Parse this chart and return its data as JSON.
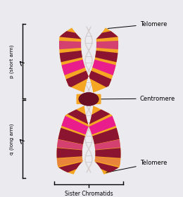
{
  "bg_color": "#ebebef",
  "labels": {
    "telomere_top": "Telomere",
    "centromere": "Centromere",
    "telomere_bottom": "Telomere",
    "p_arm": "p (short arm)",
    "q_arm": "q (long arm)",
    "sister": "Sister Chromatids"
  },
  "colors": {
    "yellow_tip": "#F5A623",
    "magenta_bright": "#E91E8C",
    "dark_red": "#8B1530",
    "pink_mid": "#D44070",
    "orange_stripe": "#E8853A",
    "centromere_dark": "#6B0F25",
    "dna_color": "#d8d0d0",
    "dna_link": "#c8c0c0"
  }
}
